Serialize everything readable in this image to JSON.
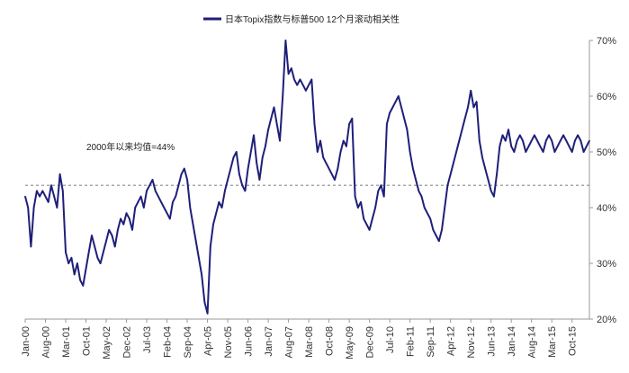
{
  "chart_data": {
    "type": "line",
    "title": "",
    "legend": [
      "日本Topix指数与标普500 12个月滚动相关性"
    ],
    "legend_position": "top-center",
    "xlabel": "",
    "ylabel": "",
    "y_axis_side": "right",
    "ylim": [
      20,
      70
    ],
    "y_ticks": [
      20,
      30,
      40,
      50,
      60,
      70
    ],
    "y_tick_labels": [
      "20%",
      "30%",
      "40%",
      "50%",
      "60%",
      "70%"
    ],
    "x_tick_labels": [
      "Jan-00",
      "Aug-00",
      "Mar-01",
      "Oct-01",
      "May-02",
      "Dec-02",
      "Jul-03",
      "Feb-04",
      "Sep-04",
      "Apr-05",
      "Nov-05",
      "Jun-06",
      "Jan-07",
      "Aug-07",
      "Mar-08",
      "Oct-08",
      "May-09",
      "Dec-09",
      "Jul-10",
      "Feb-11",
      "Sep-11",
      "Apr-12",
      "Nov-12",
      "Jun-13",
      "Jan-14",
      "Aug-14",
      "Mar-15",
      "Oct-15"
    ],
    "x_range": [
      "Jan-00",
      "Mar-16"
    ],
    "grid": false,
    "colors": {
      "series": "#1f1f7a",
      "reference": "#8a8a8a"
    },
    "reference_line": {
      "value": 44,
      "label": "2000年以来均值=44%"
    },
    "series": [
      {
        "name": "日本Topix指数与标普500 12个月滚动相关性",
        "x_months": [
          0,
          1,
          2,
          3,
          4,
          5,
          6,
          7,
          8,
          9,
          10,
          11,
          12,
          13,
          14,
          15,
          16,
          17,
          18,
          19,
          20,
          21,
          22,
          23,
          24,
          25,
          26,
          27,
          28,
          29,
          30,
          31,
          32,
          33,
          34,
          35,
          36,
          37,
          38,
          39,
          40,
          41,
          42,
          43,
          44,
          45,
          46,
          47,
          48,
          49,
          50,
          51,
          52,
          53,
          54,
          55,
          56,
          57,
          58,
          59,
          60,
          61,
          62,
          63,
          64,
          65,
          66,
          67,
          68,
          69,
          70,
          71,
          72,
          73,
          74,
          75,
          76,
          77,
          78,
          79,
          80,
          81,
          82,
          83,
          84,
          85,
          86,
          87,
          88,
          89,
          90,
          91,
          92,
          93,
          94,
          95,
          96,
          97,
          98,
          99,
          100,
          101,
          102,
          103,
          104,
          105,
          106,
          107,
          108,
          109,
          110,
          111,
          112,
          113,
          114,
          115,
          116,
          117,
          118,
          119,
          120,
          121,
          122,
          123,
          124,
          125,
          126,
          127,
          128,
          129,
          130,
          131,
          132,
          133,
          134,
          135,
          136,
          137,
          138,
          139,
          140,
          141,
          142,
          143,
          144,
          145,
          146,
          147,
          148,
          149,
          150,
          151,
          152,
          153,
          154,
          155,
          156,
          157,
          158,
          159,
          160,
          161,
          162,
          163,
          164,
          165,
          166,
          167,
          168,
          169,
          170,
          171,
          172,
          173,
          174,
          175,
          176,
          177,
          178,
          179,
          180,
          181,
          182,
          183,
          184,
          185,
          186,
          187,
          188,
          189,
          190,
          191,
          192,
          193,
          194,
          195
        ],
        "values": [
          42,
          40,
          33,
          40,
          43,
          42,
          43,
          42,
          41,
          44,
          42,
          40,
          46,
          43,
          32,
          30,
          31,
          28,
          30,
          27,
          26,
          29,
          32,
          35,
          33,
          31,
          30,
          32,
          34,
          36,
          35,
          33,
          36,
          38,
          37,
          39,
          38,
          36,
          40,
          41,
          42,
          40,
          43,
          44,
          45,
          43,
          42,
          41,
          40,
          39,
          38,
          41,
          42,
          44,
          46,
          47,
          45,
          40,
          37,
          34,
          31,
          28,
          23,
          21,
          33,
          37,
          39,
          41,
          40,
          43,
          45,
          47,
          49,
          50,
          46,
          44,
          43,
          47,
          50,
          53,
          48,
          45,
          49,
          51,
          54,
          56,
          58,
          55,
          52,
          60,
          70,
          64,
          65,
          63,
          62,
          63,
          62,
          61,
          62,
          63,
          55,
          50,
          52,
          49,
          48,
          47,
          46,
          45,
          47,
          50,
          52,
          51,
          55,
          56,
          42,
          40,
          41,
          38,
          37,
          36,
          38,
          40,
          43,
          44,
          42,
          55,
          57,
          58,
          59,
          60,
          58,
          56,
          54,
          50,
          47,
          45,
          43,
          42,
          40,
          39,
          38,
          36,
          35,
          34,
          36,
          40,
          44,
          46,
          48,
          50,
          52,
          54,
          56,
          58,
          61,
          58,
          59,
          52,
          49,
          47,
          45,
          43,
          42,
          46,
          51,
          53,
          52,
          54,
          51,
          50,
          52,
          53,
          52,
          50,
          51,
          52,
          53,
          52,
          51,
          50,
          52,
          53,
          52,
          50,
          51,
          52,
          53,
          52,
          51,
          50,
          52,
          53,
          52,
          50,
          51,
          52
        ]
      }
    ]
  }
}
